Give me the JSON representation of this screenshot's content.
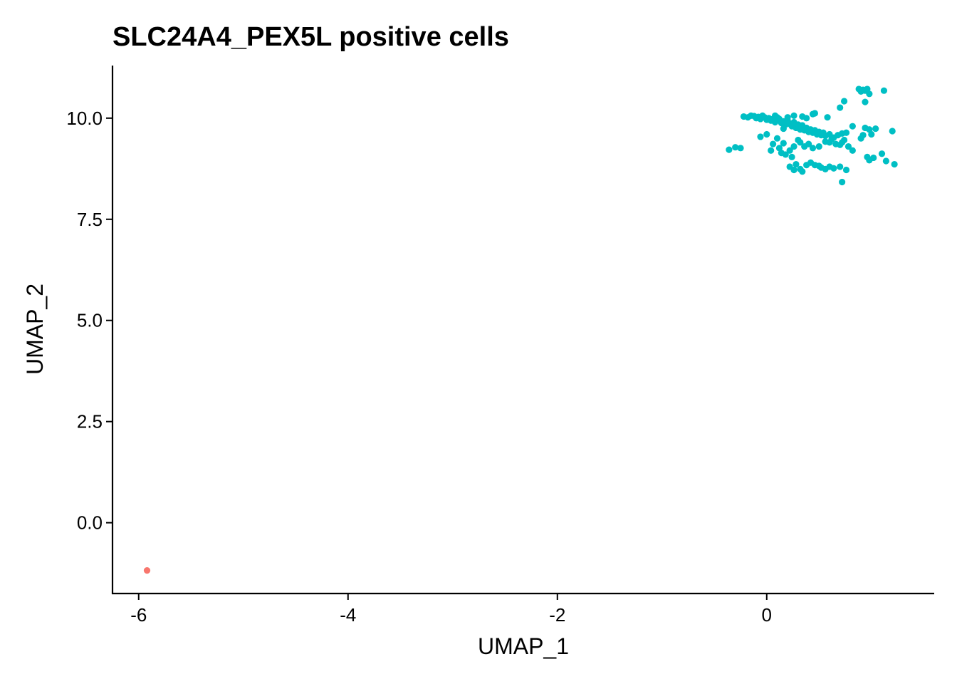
{
  "chart_data": {
    "type": "scatter",
    "title": "SLC24A4_PEX5L positive cells",
    "xlabel": "UMAP_1",
    "ylabel": "UMAP_2",
    "xlim": [
      -6.25,
      1.6
    ],
    "ylim": [
      -1.75,
      11.3
    ],
    "xticks": [
      -6,
      -4,
      -2,
      0
    ],
    "xtick_labels": [
      "-6",
      "-4",
      "-2",
      "0"
    ],
    "yticks": [
      0,
      2.5,
      5,
      7.5,
      10
    ],
    "ytick_labels": [
      "0.0",
      "2.5",
      "5.0",
      "7.5",
      "10.0"
    ],
    "grid": false,
    "legend": "none",
    "series": [
      {
        "color": "#F8766D",
        "points": [
          [
            -5.92,
            -1.18
          ]
        ]
      },
      {
        "color": "#00BFC4",
        "points": [
          [
            -0.36,
            9.22
          ],
          [
            -0.3,
            9.28
          ],
          [
            -0.25,
            9.26
          ],
          [
            -0.22,
            10.04
          ],
          [
            -0.18,
            10.02
          ],
          [
            -0.15,
            10.06
          ],
          [
            -0.12,
            10.05
          ],
          [
            -0.1,
            10.0
          ],
          [
            -0.08,
            10.03
          ],
          [
            -0.06,
            9.98
          ],
          [
            -0.04,
            10.06
          ],
          [
            -0.02,
            10.02
          ],
          [
            0.0,
            9.96
          ],
          [
            0.02,
            10.0
          ],
          [
            0.04,
            9.94
          ],
          [
            0.06,
            9.98
          ],
          [
            0.08,
            9.9
          ],
          [
            0.1,
            10.02
          ],
          [
            0.12,
            9.96
          ],
          [
            0.14,
            9.88
          ],
          [
            0.16,
            9.92
          ],
          [
            0.18,
            9.84
          ],
          [
            0.2,
            9.94
          ],
          [
            0.22,
            9.86
          ],
          [
            0.24,
            9.8
          ],
          [
            0.26,
            9.9
          ],
          [
            0.28,
            9.76
          ],
          [
            0.3,
            9.84
          ],
          [
            0.32,
            9.72
          ],
          [
            0.34,
            9.82
          ],
          [
            0.36,
            9.7
          ],
          [
            0.38,
            9.76
          ],
          [
            0.4,
            9.66
          ],
          [
            0.42,
            9.72
          ],
          [
            0.44,
            9.64
          ],
          [
            0.46,
            9.7
          ],
          [
            0.48,
            9.6
          ],
          [
            0.5,
            9.66
          ],
          [
            0.52,
            9.58
          ],
          [
            0.54,
            9.64
          ],
          [
            0.56,
            9.56
          ],
          [
            0.6,
            9.6
          ],
          [
            0.64,
            9.52
          ],
          [
            0.68,
            9.58
          ],
          [
            0.72,
            9.62
          ],
          [
            0.76,
            9.64
          ],
          [
            0.46,
            10.12
          ],
          [
            0.34,
            10.04
          ],
          [
            0.2,
            10.02
          ],
          [
            0.08,
            10.06
          ],
          [
            -0.06,
            9.54
          ],
          [
            0.0,
            9.6
          ],
          [
            0.04,
            9.2
          ],
          [
            0.06,
            9.36
          ],
          [
            0.1,
            9.5
          ],
          [
            0.12,
            9.26
          ],
          [
            0.14,
            9.14
          ],
          [
            0.16,
            9.38
          ],
          [
            0.18,
            9.1
          ],
          [
            0.22,
            9.2
          ],
          [
            0.24,
            9.04
          ],
          [
            0.26,
            9.3
          ],
          [
            0.3,
            9.46
          ],
          [
            0.32,
            9.4
          ],
          [
            0.36,
            9.3
          ],
          [
            0.4,
            9.36
          ],
          [
            0.44,
            9.26
          ],
          [
            0.5,
            9.3
          ],
          [
            0.56,
            9.42
          ],
          [
            0.6,
            9.4
          ],
          [
            0.62,
            9.48
          ],
          [
            0.66,
            9.36
          ],
          [
            0.7,
            9.34
          ],
          [
            0.72,
            9.4
          ],
          [
            0.74,
            9.46
          ],
          [
            0.78,
            9.3
          ],
          [
            0.82,
            9.2
          ],
          [
            0.9,
            9.5
          ],
          [
            0.92,
            9.58
          ],
          [
            0.94,
            9.76
          ],
          [
            0.98,
            9.72
          ],
          [
            1.04,
            9.74
          ],
          [
            1.0,
            9.6
          ],
          [
            0.96,
            9.04
          ],
          [
            0.98,
            8.96
          ],
          [
            1.02,
            9.02
          ],
          [
            1.1,
            9.12
          ],
          [
            1.14,
            8.94
          ],
          [
            1.22,
            8.86
          ],
          [
            1.2,
            9.68
          ],
          [
            0.82,
            9.8
          ],
          [
            0.22,
            8.8
          ],
          [
            0.28,
            8.86
          ],
          [
            0.26,
            8.72
          ],
          [
            0.32,
            8.74
          ],
          [
            0.34,
            8.68
          ],
          [
            0.38,
            8.84
          ],
          [
            0.42,
            8.9
          ],
          [
            0.46,
            8.84
          ],
          [
            0.5,
            8.82
          ],
          [
            0.52,
            8.78
          ],
          [
            0.56,
            8.74
          ],
          [
            0.6,
            8.8
          ],
          [
            0.64,
            8.76
          ],
          [
            0.7,
            8.8
          ],
          [
            0.76,
            8.72
          ],
          [
            0.72,
            8.42
          ],
          [
            0.88,
            10.72
          ],
          [
            0.9,
            10.66
          ],
          [
            0.92,
            10.7
          ],
          [
            0.94,
            10.68
          ],
          [
            0.96,
            10.72
          ],
          [
            0.98,
            10.6
          ],
          [
            0.94,
            10.4
          ],
          [
            1.12,
            10.68
          ],
          [
            0.74,
            10.42
          ],
          [
            0.7,
            10.26
          ],
          [
            0.58,
            10.02
          ],
          [
            0.44,
            10.1
          ],
          [
            0.26,
            10.06
          ],
          [
            0.12,
            9.98
          ],
          [
            0.38,
            10.0
          ],
          [
            0.16,
            9.74
          ]
        ]
      }
    ]
  }
}
